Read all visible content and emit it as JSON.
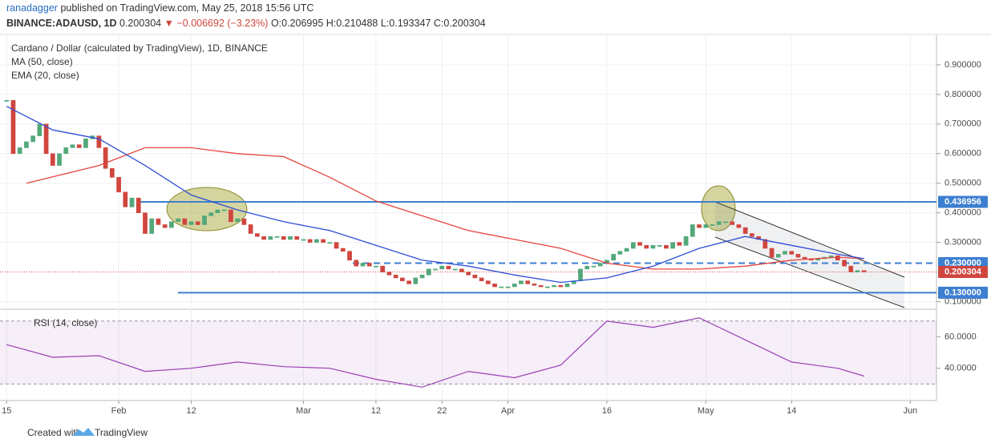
{
  "header": {
    "author": "ranadagger",
    "published": "published on TradingView.com, May 25, 2018 15:56 UTC",
    "symbol": "BINANCE:ADAUSD, 1D",
    "last": "0.200304",
    "change": "▼ −0.006692 (−3.23%)",
    "ohlc": "O:0.206995 H:0.210488 L:0.193347 C:0.200304"
  },
  "footer": {
    "created": "Created with",
    "brand": "TradingView"
  },
  "chart_data": {
    "type": "candlestick",
    "title": "Cardano / Dollar (calculated by TradingView), 1D, BINANCE",
    "xlim": [
      "2018-01-14",
      "2018-06-04"
    ],
    "xticks": [
      {
        "value": "2018-01-15",
        "label": "15"
      },
      {
        "value": "2018-02-01",
        "label": "Feb"
      },
      {
        "value": "2018-02-12",
        "label": "12"
      },
      {
        "value": "2018-03-01",
        "label": "Mar"
      },
      {
        "value": "2018-03-12",
        "label": "12"
      },
      {
        "value": "2018-03-22",
        "label": "22"
      },
      {
        "value": "2018-04-01",
        "label": "Apr"
      },
      {
        "value": "2018-04-16",
        "label": "16"
      },
      {
        "value": "2018-05-01",
        "label": "May"
      },
      {
        "value": "2018-05-14",
        "label": "14"
      },
      {
        "value": "2018-06-01",
        "label": "Jun"
      }
    ],
    "ylim": [
      0.077,
      1.0
    ],
    "yticks": [
      {
        "value": 0.1,
        "label": "0.100000"
      },
      {
        "value": 0.3,
        "label": "0.300000"
      },
      {
        "value": 0.4,
        "label": "0.400000"
      },
      {
        "value": 0.5,
        "label": "0.500000"
      },
      {
        "value": 0.6,
        "label": "0.600000"
      },
      {
        "value": 0.7,
        "label": "0.700000"
      },
      {
        "value": 0.8,
        "label": "0.800000"
      },
      {
        "value": 0.9,
        "label": "0.900000"
      }
    ],
    "x": [
      "2018-01-15",
      "2018-01-16",
      "2018-01-17",
      "2018-01-18",
      "2018-01-19",
      "2018-01-20",
      "2018-01-21",
      "2018-01-22",
      "2018-01-23",
      "2018-01-24",
      "2018-01-25",
      "2018-01-26",
      "2018-01-27",
      "2018-01-28",
      "2018-01-29",
      "2018-01-30",
      "2018-01-31",
      "2018-02-01",
      "2018-02-02",
      "2018-02-03",
      "2018-02-04",
      "2018-02-05",
      "2018-02-06",
      "2018-02-07",
      "2018-02-08",
      "2018-02-09",
      "2018-02-10",
      "2018-02-11",
      "2018-02-12",
      "2018-02-13",
      "2018-02-14",
      "2018-02-15",
      "2018-02-16",
      "2018-02-17",
      "2018-02-18",
      "2018-02-19",
      "2018-02-20",
      "2018-02-21",
      "2018-02-22",
      "2018-02-23",
      "2018-02-24",
      "2018-02-25",
      "2018-02-26",
      "2018-02-27",
      "2018-02-28",
      "2018-03-01",
      "2018-03-02",
      "2018-03-03",
      "2018-03-04",
      "2018-03-05",
      "2018-03-06",
      "2018-03-07",
      "2018-03-08",
      "2018-03-09",
      "2018-03-10",
      "2018-03-11",
      "2018-03-12",
      "2018-03-13",
      "2018-03-14",
      "2018-03-15",
      "2018-03-16",
      "2018-03-17",
      "2018-03-18",
      "2018-03-19",
      "2018-03-20",
      "2018-03-21",
      "2018-03-22",
      "2018-03-23",
      "2018-03-24",
      "2018-03-25",
      "2018-03-26",
      "2018-03-27",
      "2018-03-28",
      "2018-03-29",
      "2018-03-30",
      "2018-03-31",
      "2018-04-01",
      "2018-04-02",
      "2018-04-03",
      "2018-04-04",
      "2018-04-05",
      "2018-04-06",
      "2018-04-07",
      "2018-04-08",
      "2018-04-09",
      "2018-04-10",
      "2018-04-11",
      "2018-04-12",
      "2018-04-13",
      "2018-04-14",
      "2018-04-15",
      "2018-04-16",
      "2018-04-17",
      "2018-04-18",
      "2018-04-19",
      "2018-04-20",
      "2018-04-21",
      "2018-04-22",
      "2018-04-23",
      "2018-04-24",
      "2018-04-25",
      "2018-04-26",
      "2018-04-27",
      "2018-04-28",
      "2018-04-29",
      "2018-04-30",
      "2018-05-01",
      "2018-05-02",
      "2018-05-03",
      "2018-05-04",
      "2018-05-05",
      "2018-05-06",
      "2018-05-07",
      "2018-05-08",
      "2018-05-09",
      "2018-05-10",
      "2018-05-11",
      "2018-05-12",
      "2018-05-13",
      "2018-05-14",
      "2018-05-15",
      "2018-05-16",
      "2018-05-17",
      "2018-05-18",
      "2018-05-19",
      "2018-05-20",
      "2018-05-21",
      "2018-05-22",
      "2018-05-23",
      "2018-05-24",
      "2018-05-25"
    ],
    "series": [
      {
        "name": "Cardano / Dollar (calculated by TradingView), 1D, BINANCE",
        "up_color": "#53a87a",
        "down_color": "#d0463f",
        "values": [
          0.78,
          0.6,
          0.62,
          0.64,
          0.66,
          0.7,
          0.6,
          0.56,
          0.6,
          0.62,
          0.63,
          0.62,
          0.65,
          0.66,
          0.62,
          0.55,
          0.52,
          0.47,
          0.42,
          0.45,
          0.4,
          0.33,
          0.38,
          0.36,
          0.35,
          0.37,
          0.38,
          0.36,
          0.37,
          0.36,
          0.39,
          0.4,
          0.41,
          0.41,
          0.37,
          0.38,
          0.36,
          0.33,
          0.32,
          0.31,
          0.32,
          0.32,
          0.31,
          0.32,
          0.31,
          0.31,
          0.3,
          0.31,
          0.3,
          0.3,
          0.28,
          0.27,
          0.24,
          0.22,
          0.23,
          0.22,
          0.22,
          0.2,
          0.19,
          0.18,
          0.17,
          0.16,
          0.18,
          0.19,
          0.21,
          0.21,
          0.22,
          0.21,
          0.21,
          0.2,
          0.19,
          0.18,
          0.17,
          0.16,
          0.15,
          0.15,
          0.15,
          0.16,
          0.17,
          0.16,
          0.155,
          0.15,
          0.15,
          0.155,
          0.15,
          0.16,
          0.17,
          0.21,
          0.22,
          0.22,
          0.23,
          0.24,
          0.26,
          0.27,
          0.28,
          0.3,
          0.29,
          0.28,
          0.29,
          0.29,
          0.28,
          0.3,
          0.29,
          0.32,
          0.36,
          0.35,
          0.36,
          0.36,
          0.37,
          0.37,
          0.36,
          0.35,
          0.33,
          0.32,
          0.31,
          0.28,
          0.25,
          0.26,
          0.27,
          0.26,
          0.25,
          0.245,
          0.24,
          0.245,
          0.25,
          0.255,
          0.24,
          0.22,
          0.2,
          0.205,
          0.200304
        ]
      },
      {
        "name": "MA (50, close)",
        "color": "#e5443b",
        "x": [
          "2018-01-18",
          "2018-01-29",
          "2018-02-05",
          "2018-02-12",
          "2018-02-19",
          "2018-02-26",
          "2018-03-05",
          "2018-03-12",
          "2018-03-19",
          "2018-03-26",
          "2018-04-02",
          "2018-04-09",
          "2018-04-16",
          "2018-04-23",
          "2018-04-30",
          "2018-05-07",
          "2018-05-14",
          "2018-05-21",
          "2018-05-25"
        ],
        "values": [
          0.5,
          0.56,
          0.62,
          0.62,
          0.6,
          0.59,
          0.52,
          0.44,
          0.39,
          0.34,
          0.31,
          0.28,
          0.23,
          0.21,
          0.21,
          0.22,
          0.24,
          0.25,
          0.245
        ]
      },
      {
        "name": "EMA (20, close)",
        "color": "#2f4fd6",
        "x": [
          "2018-01-15",
          "2018-01-22",
          "2018-01-29",
          "2018-02-05",
          "2018-02-12",
          "2018-02-19",
          "2018-02-26",
          "2018-03-05",
          "2018-03-12",
          "2018-03-19",
          "2018-03-26",
          "2018-04-02",
          "2018-04-09",
          "2018-04-16",
          "2018-04-23",
          "2018-04-30",
          "2018-05-07",
          "2018-05-14",
          "2018-05-21",
          "2018-05-25"
        ],
        "values": [
          0.76,
          0.68,
          0.65,
          0.56,
          0.46,
          0.41,
          0.37,
          0.34,
          0.29,
          0.24,
          0.22,
          0.19,
          0.165,
          0.18,
          0.22,
          0.28,
          0.32,
          0.29,
          0.26,
          0.245
        ]
      }
    ],
    "levels": [
      {
        "value": 0.436956,
        "label": "0.436956"
      },
      {
        "value": 0.23,
        "label": "0.230000"
      },
      {
        "value": 0.13,
        "label": "0.130000"
      }
    ],
    "level_color": "#3d7fd0",
    "last_price": {
      "value": 0.200304,
      "label": "0.200304",
      "color": "#d0463f"
    },
    "rsi": {
      "name": "RSI (14, close)",
      "color": "#9b3fb5",
      "ylim": [
        19.5,
        77
      ],
      "yticks": [
        {
          "value": 40,
          "label": "40.0000"
        },
        {
          "value": 60,
          "label": "60.0000"
        }
      ],
      "band": [
        30,
        70
      ],
      "x": [
        "2018-01-15",
        "2018-01-22",
        "2018-01-29",
        "2018-02-05",
        "2018-02-12",
        "2018-02-19",
        "2018-02-26",
        "2018-03-05",
        "2018-03-12",
        "2018-03-19",
        "2018-03-26",
        "2018-04-02",
        "2018-04-09",
        "2018-04-16",
        "2018-04-23",
        "2018-04-30",
        "2018-05-07",
        "2018-05-14",
        "2018-05-21",
        "2018-05-25"
      ],
      "values": [
        55,
        47,
        48,
        38,
        40,
        44,
        41,
        40,
        33,
        28,
        38,
        34,
        42,
        70,
        66,
        72,
        58,
        44,
        40,
        35
      ]
    }
  }
}
